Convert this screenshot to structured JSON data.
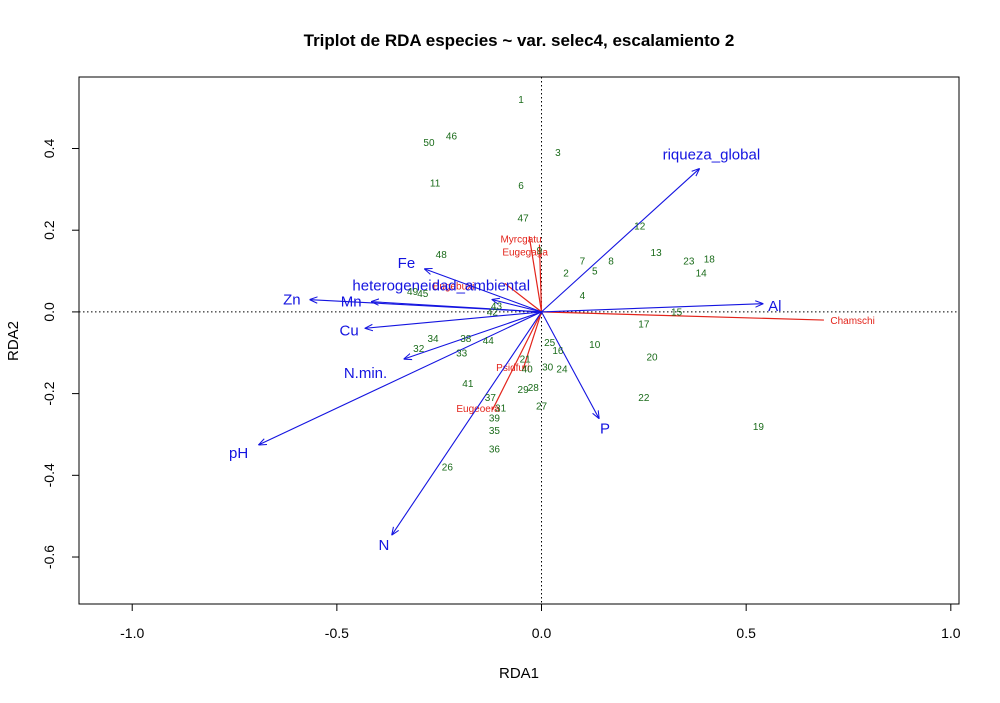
{
  "chart_data": {
    "type": "scatter",
    "title": "Triplot de RDA especies ~ var. selec4, escalamiento 2",
    "xlabel": "RDA1",
    "ylabel": "RDA2",
    "xlim": [
      -1.13,
      1.02
    ],
    "ylim": [
      -0.715,
      0.575
    ],
    "xticks": [
      -1.0,
      -0.5,
      0.0,
      0.5,
      1.0
    ],
    "xtick_labels": [
      "-1.0",
      "-0.5",
      "0.0",
      "0.5",
      "1.0"
    ],
    "yticks": [
      -0.6,
      -0.4,
      -0.2,
      0.0,
      0.2,
      0.4
    ],
    "ytick_labels": [
      "-0.6",
      "-0.4",
      "-0.2",
      "0.0",
      "0.2",
      "0.4"
    ],
    "grid": false,
    "reference_lines": {
      "x": 0,
      "y": 0,
      "style": "dotted"
    },
    "colors": {
      "sites": "#1a6b1a",
      "species": "#e3241b",
      "environment": "#1414e0"
    },
    "sites": [
      {
        "label": "1",
        "x": -0.05,
        "y": 0.52
      },
      {
        "label": "2",
        "x": 0.06,
        "y": 0.095
      },
      {
        "label": "3",
        "x": 0.04,
        "y": 0.39
      },
      {
        "label": "4",
        "x": 0.1,
        "y": 0.04
      },
      {
        "label": "5",
        "x": 0.13,
        "y": 0.1
      },
      {
        "label": "6",
        "x": -0.05,
        "y": 0.31
      },
      {
        "label": "7",
        "x": 0.1,
        "y": 0.125
      },
      {
        "label": "8",
        "x": 0.17,
        "y": 0.125
      },
      {
        "label": "9",
        "x": -0.005,
        "y": 0.15
      },
      {
        "label": "10",
        "x": 0.13,
        "y": -0.08
      },
      {
        "label": "11",
        "x": -0.26,
        "y": 0.315
      },
      {
        "label": "12",
        "x": 0.24,
        "y": 0.21
      },
      {
        "label": "13",
        "x": 0.28,
        "y": 0.145
      },
      {
        "label": "14",
        "x": 0.39,
        "y": 0.095
      },
      {
        "label": "15",
        "x": 0.33,
        "y": 0.0
      },
      {
        "label": "16",
        "x": 0.04,
        "y": -0.095
      },
      {
        "label": "17",
        "x": 0.25,
        "y": -0.03
      },
      {
        "label": "18",
        "x": 0.41,
        "y": 0.13
      },
      {
        "label": "19",
        "x": 0.53,
        "y": -0.28
      },
      {
        "label": "20",
        "x": 0.27,
        "y": -0.11
      },
      {
        "label": "21",
        "x": -0.04,
        "y": -0.115
      },
      {
        "label": "22",
        "x": 0.25,
        "y": -0.21
      },
      {
        "label": "23",
        "x": 0.36,
        "y": 0.125
      },
      {
        "label": "24",
        "x": 0.05,
        "y": -0.14
      },
      {
        "label": "25",
        "x": 0.02,
        "y": -0.075
      },
      {
        "label": "26",
        "x": -0.23,
        "y": -0.38
      },
      {
        "label": "27",
        "x": 0.0,
        "y": -0.23
      },
      {
        "label": "28",
        "x": -0.02,
        "y": -0.185
      },
      {
        "label": "29",
        "x": -0.045,
        "y": -0.19
      },
      {
        "label": "30",
        "x": 0.015,
        "y": -0.135
      },
      {
        "label": "31",
        "x": -0.1,
        "y": -0.235
      },
      {
        "label": "32",
        "x": -0.3,
        "y": -0.09
      },
      {
        "label": "33",
        "x": -0.195,
        "y": -0.1
      },
      {
        "label": "34",
        "x": -0.265,
        "y": -0.065
      },
      {
        "label": "35",
        "x": -0.115,
        "y": -0.29
      },
      {
        "label": "36",
        "x": -0.115,
        "y": -0.335
      },
      {
        "label": "37",
        "x": -0.125,
        "y": -0.21
      },
      {
        "label": "38",
        "x": -0.185,
        "y": -0.065
      },
      {
        "label": "39",
        "x": -0.115,
        "y": -0.26
      },
      {
        "label": "40",
        "x": -0.035,
        "y": -0.14
      },
      {
        "label": "41",
        "x": -0.18,
        "y": -0.175
      },
      {
        "label": "42",
        "x": -0.12,
        "y": -0.0
      },
      {
        "label": "43",
        "x": -0.11,
        "y": 0.015
      },
      {
        "label": "44",
        "x": -0.13,
        "y": -0.07
      },
      {
        "label": "45",
        "x": -0.29,
        "y": 0.045
      },
      {
        "label": "46",
        "x": -0.22,
        "y": 0.43
      },
      {
        "label": "47",
        "x": -0.045,
        "y": 0.23
      },
      {
        "label": "48",
        "x": -0.245,
        "y": 0.14
      },
      {
        "label": "49",
        "x": -0.315,
        "y": 0.05
      },
      {
        "label": "50",
        "x": -0.275,
        "y": 0.415
      }
    ],
    "species": [
      {
        "label": "Myrcgatu",
        "x": -0.03,
        "y": 0.185,
        "tx": -0.05,
        "ty": 0.18
      },
      {
        "label": "Eugegaga",
        "x": -0.005,
        "y": 0.165,
        "tx": -0.04,
        "ty": 0.148
      },
      {
        "label": "Eugebuxi",
        "x": -0.09,
        "y": 0.07,
        "tx": -0.215,
        "ty": 0.065
      },
      {
        "label": "Chamschi",
        "x": 0.69,
        "y": -0.02,
        "tx": 0.76,
        "ty": -0.02
      },
      {
        "label": "Psidfuri",
        "x": -0.045,
        "y": -0.14,
        "tx": -0.07,
        "ty": -0.135
      },
      {
        "label": "Eugeoera",
        "x": -0.12,
        "y": -0.24,
        "tx": -0.155,
        "ty": -0.235
      }
    ],
    "environment": [
      {
        "label": "riqueza_global",
        "x": 0.385,
        "y": 0.35,
        "tx": 0.415,
        "ty": 0.385
      },
      {
        "label": "Al",
        "x": 0.54,
        "y": 0.02,
        "tx": 0.57,
        "ty": 0.015
      },
      {
        "label": "P",
        "x": 0.14,
        "y": -0.26,
        "tx": 0.155,
        "ty": -0.285
      },
      {
        "label": "N",
        "x": -0.365,
        "y": -0.545,
        "tx": -0.385,
        "ty": -0.57
      },
      {
        "label": "pH",
        "x": -0.69,
        "y": -0.325,
        "tx": -0.74,
        "ty": -0.345
      },
      {
        "label": "N.min.",
        "x": -0.335,
        "y": -0.115,
        "tx": -0.43,
        "ty": -0.15
      },
      {
        "label": "Cu",
        "x": -0.43,
        "y": -0.04,
        "tx": -0.47,
        "ty": -0.045
      },
      {
        "label": "Zn",
        "x": -0.565,
        "y": 0.03,
        "tx": -0.61,
        "ty": 0.03
      },
      {
        "label": "Mn",
        "x": -0.415,
        "y": 0.025,
        "tx": -0.465,
        "ty": 0.025
      },
      {
        "label": "Fe",
        "x": -0.285,
        "y": 0.105,
        "tx": -0.33,
        "ty": 0.12
      },
      {
        "label": "heterogeneidad_ambiental",
        "x": -0.12,
        "y": 0.03,
        "tx": -0.245,
        "ty": 0.065
      }
    ]
  }
}
